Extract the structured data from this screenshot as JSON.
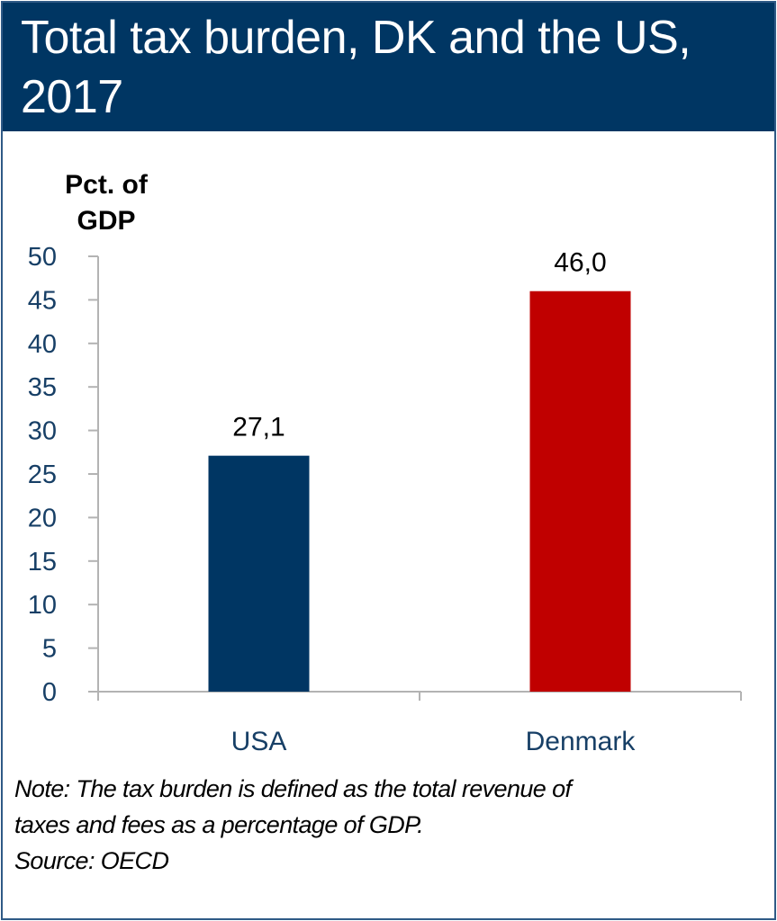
{
  "title": "Total tax burden, DK and the US, 2017",
  "colors": {
    "header_bg": "#003663",
    "usa": "#003663",
    "denmark": "#c00000",
    "axis": "#b3b3b3",
    "tick_text": "#173f66"
  },
  "chart_data": {
    "type": "bar",
    "title": "Total tax burden, DK and the US, 2017",
    "xlabel": "",
    "ylabel": "Pct. of GDP",
    "ylabel_lines": [
      "Pct. of",
      "GDP"
    ],
    "categories": [
      "USA",
      "Denmark"
    ],
    "values": [
      27.1,
      46.0
    ],
    "data_labels": [
      "27,1",
      "46,0"
    ],
    "bar_colors": [
      "#003663",
      "#c00000"
    ],
    "ylim": [
      0,
      50
    ],
    "yticks": [
      0,
      5,
      10,
      15,
      20,
      25,
      30,
      35,
      40,
      45,
      50
    ],
    "ytick_labels": [
      "0",
      "5",
      "10",
      "15",
      "20",
      "25",
      "30",
      "35",
      "40",
      "45",
      "50"
    ],
    "grid": false,
    "legend": "none"
  },
  "note": {
    "lines": [
      "Note: The tax burden is defined as the total revenue of",
      "taxes and fees as a percentage of GDP.",
      "Source: OECD"
    ]
  }
}
